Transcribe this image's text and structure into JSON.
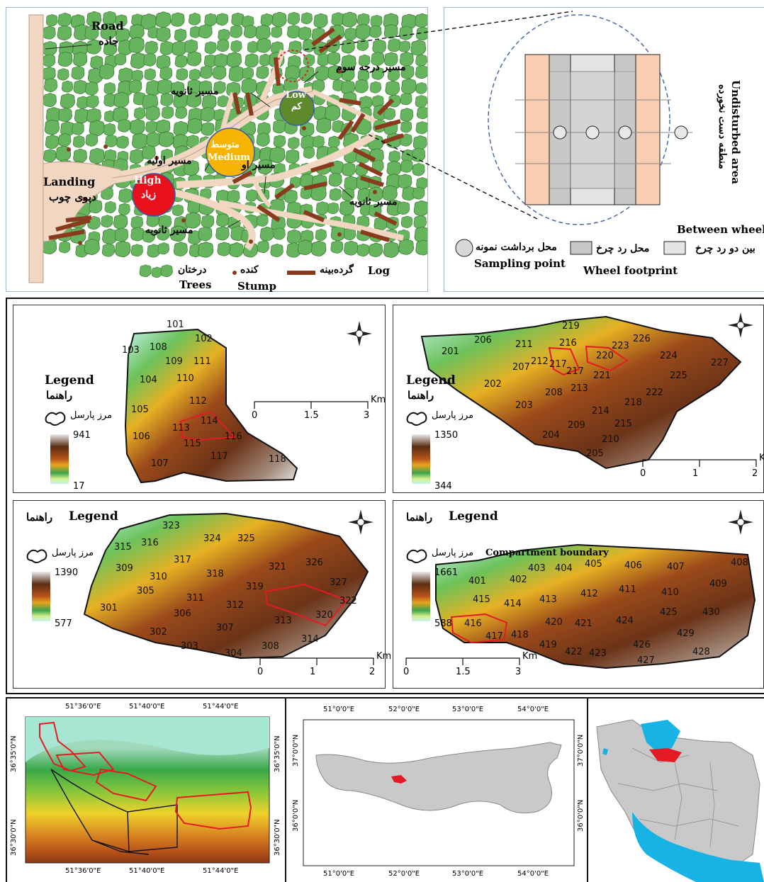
{
  "skid_diagram": {
    "road_en": "Road",
    "road_fa": "جاده",
    "landing_en": "Landing",
    "landing_fa": "دپوی چوب",
    "third_trail": "مسیر درجه سوم",
    "secondary_trail_a": "مسیر ثانویه",
    "secondary_trail_b": "مسیر ثانویه",
    "secondary_trail_c": "مسیر ثانویه",
    "primary_trail_a": "مسیر اولیه",
    "primary_trail_b": "مسیر او",
    "intensity_high_en": "High",
    "intensity_high_fa": "زیاد",
    "intensity_medium_fa": "متوسط",
    "intensity_medium_en": "Medium",
    "intensity_low_en": "Low",
    "intensity_low_fa": "کم",
    "legend_trees_fa": "درختان",
    "legend_trees_en": "Trees",
    "legend_stump_fa": "کنده",
    "legend_stump_en": "Stump",
    "legend_log_fa": "گرده‌بینه",
    "legend_log_en": "Log"
  },
  "sampling_diagram": {
    "undisturbed_en": "Undisturbed area",
    "undisturbed_fa": "منطقه دست نخورده",
    "between_wheel_en": "Between wheel",
    "between_wheel_fa": "بین دو رد چرخ",
    "wheel_footprint_fa": "محل رد چرخ",
    "wheel_footprint_en": "Wheel footprint",
    "sampling_point_fa": "محل برداشت نمونه",
    "sampling_point_en": "Sampling point"
  },
  "compartment_maps": [
    {
      "legend_en": "Legend",
      "legend_fa": "راهنما",
      "boundary_fa": "مرز پارسل",
      "elev_max": "941",
      "elev_min": "17",
      "scale_ticks": [
        "0",
        "1.5",
        "3"
      ],
      "scale_unit": "Km",
      "compartments": [
        "101",
        "102",
        "103",
        "108",
        "109",
        "111",
        "104",
        "110",
        "105",
        "112",
        "114",
        "113",
        "106",
        "116",
        "115",
        "117",
        "107",
        "118"
      ]
    },
    {
      "legend_en": "Legend",
      "legend_fa": "راهنما",
      "boundary_fa": "مرز پارسل",
      "elev_max": "1350",
      "elev_min": "344",
      "scale_ticks": [
        "0",
        "1",
        "2"
      ],
      "scale_unit": "Km",
      "compartments": [
        "201",
        "206",
        "211",
        "219",
        "216",
        "220",
        "223",
        "226",
        "224",
        "227",
        "212",
        "207",
        "217",
        "217",
        "221",
        "225",
        "202",
        "222",
        "208",
        "213",
        "218",
        "203",
        "214",
        "215",
        "209",
        "204",
        "210",
        "205"
      ]
    },
    {
      "legend_en": "Legend",
      "legend_fa": "راهنما",
      "boundary_fa": "مرز پارسل",
      "elev_max": "1390",
      "elev_min": "577",
      "scale_ticks": [
        "0",
        "1",
        "2"
      ],
      "scale_unit": "Km",
      "compartments": [
        "323",
        "324",
        "325",
        "315",
        "316",
        "326",
        "317",
        "321",
        "309",
        "318",
        "327",
        "310",
        "319",
        "305",
        "322",
        "311",
        "312",
        "301",
        "306",
        "320",
        "313",
        "307",
        "302",
        "314",
        "308",
        "303",
        "304"
      ]
    },
    {
      "legend_en": "Legend",
      "legend_fa": "راهنما",
      "boundary_fa": "مرز پارسل",
      "boundary_en": "Compartment boundary",
      "elev_max": "1661",
      "elev_min": "588",
      "scale_ticks": [
        "0",
        "1.5",
        "3"
      ],
      "scale_unit": "Km",
      "compartments": [
        "405",
        "408",
        "403",
        "404",
        "406",
        "407",
        "401",
        "402",
        "412",
        "411",
        "410",
        "409",
        "415",
        "414",
        "413",
        "425",
        "430",
        "424",
        "420",
        "421",
        "416",
        "418",
        "429",
        "417",
        "419",
        "422",
        "423",
        "426",
        "428",
        "427"
      ]
    }
  ],
  "location_maps": {
    "topo": {
      "lon_labels": [
        "51°36'0\"E",
        "51°40'0\"E",
        "51°44'0\"E"
      ],
      "lat_labels": [
        "36°35'0\"N",
        "36°30'0\"N"
      ]
    },
    "province": {
      "lon_labels": [
        "51°0'0\"E",
        "52°0'0\"E",
        "53°0'0\"E",
        "54°0'0\"E"
      ],
      "lat_labels": [
        "37°0'0\"N",
        "36°0'0\"N"
      ]
    }
  },
  "colors": {
    "intensity_high": "#e8101a",
    "intensity_medium": "#f6b400",
    "intensity_low": "#5e8a2c",
    "tree": "#66b45e",
    "log": "#8a3a1e",
    "trail": "#f1d6c2",
    "compartment_highlight": "#e51b23",
    "sea": "#17b3e5"
  }
}
